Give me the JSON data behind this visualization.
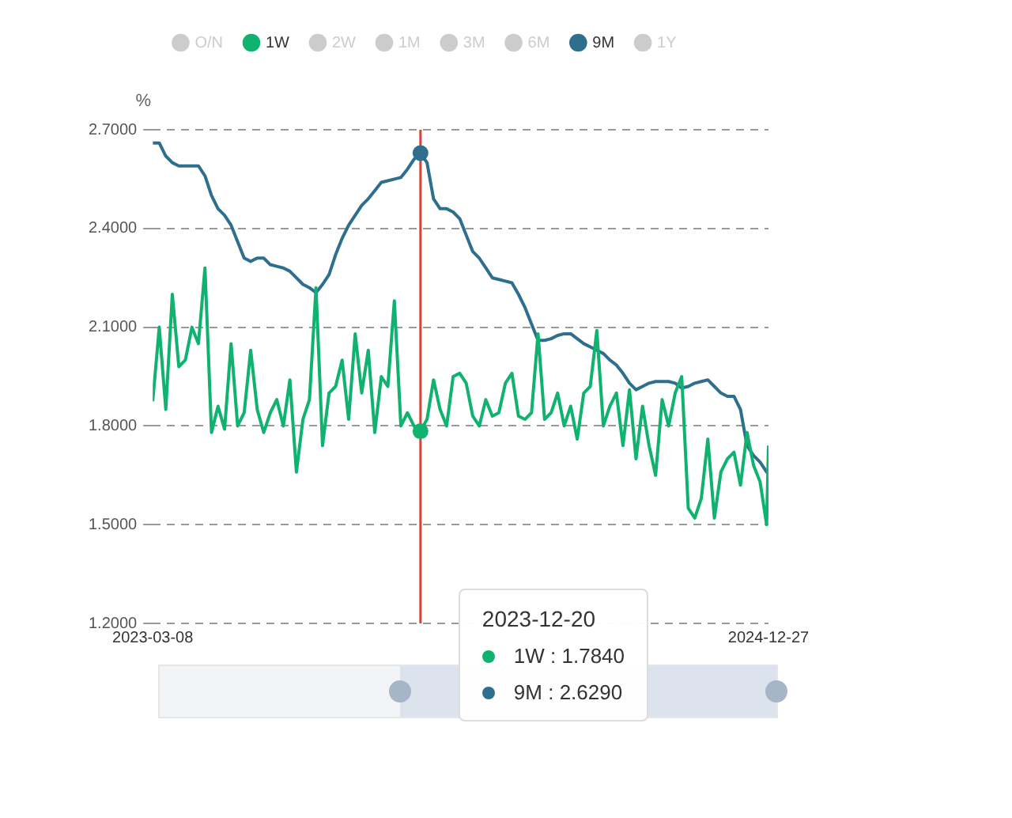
{
  "chart_data": {
    "type": "line",
    "ylabel": "%",
    "legend": "top",
    "grid": "y",
    "marker": "none",
    "x": [
      "2023-03-08",
      "2023-03-15",
      "2023-03-22",
      "2023-03-29",
      "2023-04-05",
      "2023-04-12",
      "2023-04-19",
      "2023-04-26",
      "2023-05-03",
      "2023-05-10",
      "2023-05-17",
      "2023-05-24",
      "2023-05-31",
      "2023-06-07",
      "2023-06-14",
      "2023-06-21",
      "2023-06-28",
      "2023-07-05",
      "2023-07-12",
      "2023-07-19",
      "2023-07-26",
      "2023-08-02",
      "2023-08-09",
      "2023-08-16",
      "2023-08-23",
      "2023-08-30",
      "2023-09-06",
      "2023-09-13",
      "2023-09-20",
      "2023-09-27",
      "2023-10-04",
      "2023-10-11",
      "2023-10-18",
      "2023-10-25",
      "2023-11-01",
      "2023-11-08",
      "2023-11-15",
      "2023-11-22",
      "2023-11-29",
      "2023-12-06",
      "2023-12-13",
      "2023-12-20",
      "2023-12-27",
      "2024-01-03",
      "2024-01-10",
      "2024-01-17",
      "2024-01-24",
      "2024-01-31",
      "2024-02-07",
      "2024-02-14",
      "2024-02-21",
      "2024-02-28",
      "2024-03-06",
      "2024-03-13",
      "2024-03-20",
      "2024-03-27",
      "2024-04-03",
      "2024-04-10",
      "2024-04-17",
      "2024-04-24",
      "2024-05-01",
      "2024-05-08",
      "2024-05-15",
      "2024-05-22",
      "2024-05-29",
      "2024-06-05",
      "2024-06-12",
      "2024-06-19",
      "2024-06-26",
      "2024-07-03",
      "2024-07-10",
      "2024-07-17",
      "2024-07-24",
      "2024-07-31",
      "2024-08-07",
      "2024-08-14",
      "2024-08-21",
      "2024-08-28",
      "2024-09-04",
      "2024-09-11",
      "2024-09-18",
      "2024-09-25",
      "2024-10-02",
      "2024-10-09",
      "2024-10-16",
      "2024-10-23",
      "2024-10-30",
      "2024-11-06",
      "2024-11-13",
      "2024-11-20",
      "2024-11-27",
      "2024-12-04",
      "2024-12-11",
      "2024-12-18",
      "2024-12-25",
      "2024-12-27"
    ],
    "xlim": [
      "2023-03-08",
      "2024-12-27"
    ],
    "xticks": [
      {
        "value": "2023-03-08",
        "label": "2023-03-08"
      },
      {
        "value": "2024-12-27",
        "label": "2024-12-27"
      }
    ],
    "ylim": [
      1.2,
      2.7
    ],
    "yticks": [
      {
        "value": 1.2,
        "label": "1.2000"
      },
      {
        "value": 1.5,
        "label": "1.5000"
      },
      {
        "value": 1.8,
        "label": "1.8000"
      },
      {
        "value": 2.1,
        "label": "2.1000"
      },
      {
        "value": 2.4,
        "label": "2.4000"
      },
      {
        "value": 2.7,
        "label": "2.7000"
      }
    ],
    "series": [
      {
        "name": "O/N",
        "color": "#cccccc",
        "values": [
          null,
          null,
          null,
          null,
          null,
          null,
          null,
          null,
          null,
          null,
          null,
          null,
          null,
          null,
          null,
          null,
          null,
          null,
          null,
          null,
          null,
          null,
          null,
          null,
          null,
          null,
          null,
          null,
          null,
          null,
          null,
          null,
          null,
          null,
          null,
          null,
          null,
          null,
          null,
          null,
          null,
          null,
          null,
          null,
          null,
          null,
          null,
          null,
          null,
          null,
          null,
          null,
          null,
          null,
          null,
          null,
          null,
          null,
          null,
          null,
          null,
          null,
          null,
          null,
          null,
          null,
          null,
          null,
          null,
          null,
          null,
          null,
          null,
          null,
          null,
          null,
          null,
          null,
          null,
          null,
          null,
          null,
          null,
          null,
          null,
          null,
          null,
          null,
          null,
          null,
          null,
          null,
          null,
          null,
          null,
          null
        ]
      },
      {
        "name": "1W",
        "color": "#10b26f",
        "values": [
          1.875,
          2.1,
          1.85,
          2.2,
          1.98,
          2.0,
          2.1,
          2.05,
          2.28,
          1.78,
          1.86,
          1.79,
          2.05,
          1.8,
          1.84,
          2.03,
          1.85,
          1.78,
          1.84,
          1.88,
          1.8,
          1.94,
          1.66,
          1.82,
          1.88,
          2.22,
          1.74,
          1.9,
          1.92,
          2.0,
          1.82,
          2.08,
          1.9,
          2.03,
          1.78,
          1.95,
          1.92,
          2.18,
          1.8,
          1.84,
          1.8,
          1.784,
          1.82,
          1.94,
          1.85,
          1.8,
          1.95,
          1.96,
          1.93,
          1.83,
          1.8,
          1.88,
          1.83,
          1.84,
          1.93,
          1.96,
          1.83,
          1.82,
          1.84,
          2.08,
          1.82,
          1.84,
          1.9,
          1.8,
          1.86,
          1.76,
          1.9,
          1.92,
          2.09,
          1.8,
          1.86,
          1.9,
          1.74,
          1.91,
          1.7,
          1.86,
          1.74,
          1.65,
          1.88,
          1.8,
          1.9,
          1.95,
          1.55,
          1.52,
          1.58,
          1.76,
          1.52,
          1.66,
          1.7,
          1.72,
          1.62,
          1.78,
          1.68,
          1.63,
          1.5,
          1.74
        ]
      },
      {
        "name": "2W",
        "color": "#cccccc",
        "values": [
          null,
          null,
          null,
          null,
          null,
          null,
          null,
          null,
          null,
          null,
          null,
          null,
          null,
          null,
          null,
          null,
          null,
          null,
          null,
          null,
          null,
          null,
          null,
          null,
          null,
          null,
          null,
          null,
          null,
          null,
          null,
          null,
          null,
          null,
          null,
          null,
          null,
          null,
          null,
          null,
          null,
          null,
          null,
          null,
          null,
          null,
          null,
          null,
          null,
          null,
          null,
          null,
          null,
          null,
          null,
          null,
          null,
          null,
          null,
          null,
          null,
          null,
          null,
          null,
          null,
          null,
          null,
          null,
          null,
          null,
          null,
          null,
          null,
          null,
          null,
          null,
          null,
          null,
          null,
          null,
          null,
          null,
          null,
          null,
          null,
          null,
          null,
          null,
          null,
          null,
          null,
          null,
          null,
          null,
          null,
          null
        ]
      },
      {
        "name": "1M",
        "color": "#cccccc",
        "values": [
          null,
          null,
          null,
          null,
          null,
          null,
          null,
          null,
          null,
          null,
          null,
          null,
          null,
          null,
          null,
          null,
          null,
          null,
          null,
          null,
          null,
          null,
          null,
          null,
          null,
          null,
          null,
          null,
          null,
          null,
          null,
          null,
          null,
          null,
          null,
          null,
          null,
          null,
          null,
          null,
          null,
          null,
          null,
          null,
          null,
          null,
          null,
          null,
          null,
          null,
          null,
          null,
          null,
          null,
          null,
          null,
          null,
          null,
          null,
          null,
          null,
          null,
          null,
          null,
          null,
          null,
          null,
          null,
          null,
          null,
          null,
          null,
          null,
          null,
          null,
          null,
          null,
          null,
          null,
          null,
          null,
          null,
          null,
          null,
          null,
          null,
          null,
          null,
          null,
          null,
          null,
          null,
          null,
          null,
          null,
          null
        ]
      },
      {
        "name": "3M",
        "color": "#cccccc",
        "values": [
          null,
          null,
          null,
          null,
          null,
          null,
          null,
          null,
          null,
          null,
          null,
          null,
          null,
          null,
          null,
          null,
          null,
          null,
          null,
          null,
          null,
          null,
          null,
          null,
          null,
          null,
          null,
          null,
          null,
          null,
          null,
          null,
          null,
          null,
          null,
          null,
          null,
          null,
          null,
          null,
          null,
          null,
          null,
          null,
          null,
          null,
          null,
          null,
          null,
          null,
          null,
          null,
          null,
          null,
          null,
          null,
          null,
          null,
          null,
          null,
          null,
          null,
          null,
          null,
          null,
          null,
          null,
          null,
          null,
          null,
          null,
          null,
          null,
          null,
          null,
          null,
          null,
          null,
          null,
          null,
          null,
          null,
          null,
          null,
          null,
          null,
          null,
          null,
          null,
          null,
          null,
          null,
          null,
          null,
          null,
          null
        ]
      },
      {
        "name": "6M",
        "color": "#cccccc",
        "values": [
          null,
          null,
          null,
          null,
          null,
          null,
          null,
          null,
          null,
          null,
          null,
          null,
          null,
          null,
          null,
          null,
          null,
          null,
          null,
          null,
          null,
          null,
          null,
          null,
          null,
          null,
          null,
          null,
          null,
          null,
          null,
          null,
          null,
          null,
          null,
          null,
          null,
          null,
          null,
          null,
          null,
          null,
          null,
          null,
          null,
          null,
          null,
          null,
          null,
          null,
          null,
          null,
          null,
          null,
          null,
          null,
          null,
          null,
          null,
          null,
          null,
          null,
          null,
          null,
          null,
          null,
          null,
          null,
          null,
          null,
          null,
          null,
          null,
          null,
          null,
          null,
          null,
          null,
          null,
          null,
          null,
          null,
          null,
          null,
          null,
          null,
          null,
          null,
          null,
          null,
          null,
          null,
          null,
          null,
          null,
          null
        ]
      },
      {
        "name": "9M",
        "color": "#2e6f8e",
        "values": [
          2.66,
          2.66,
          2.62,
          2.6,
          2.59,
          2.59,
          2.59,
          2.59,
          2.56,
          2.5,
          2.46,
          2.44,
          2.41,
          2.36,
          2.31,
          2.3,
          2.31,
          2.31,
          2.29,
          2.285,
          2.28,
          2.27,
          2.25,
          2.23,
          2.22,
          2.205,
          2.23,
          2.26,
          2.32,
          2.37,
          2.41,
          2.44,
          2.47,
          2.49,
          2.515,
          2.54,
          2.545,
          2.55,
          2.555,
          2.58,
          2.61,
          2.629,
          2.6,
          2.49,
          2.46,
          2.46,
          2.45,
          2.43,
          2.38,
          2.33,
          2.31,
          2.28,
          2.25,
          2.245,
          2.24,
          2.235,
          2.2,
          2.16,
          2.11,
          2.06,
          2.06,
          2.065,
          2.075,
          2.08,
          2.08,
          2.065,
          2.05,
          2.04,
          2.03,
          2.02,
          2.0,
          1.985,
          1.96,
          1.93,
          1.91,
          1.92,
          1.93,
          1.935,
          1.935,
          1.935,
          1.93,
          1.915,
          1.92,
          1.93,
          1.935,
          1.94,
          1.92,
          1.9,
          1.89,
          1.89,
          1.85,
          1.74,
          1.71,
          1.69,
          1.66,
          1.66
        ]
      },
      {
        "name": "1Y",
        "color": "#cccccc",
        "values": [
          null,
          null,
          null,
          null,
          null,
          null,
          null,
          null,
          null,
          null,
          null,
          null,
          null,
          null,
          null,
          null,
          null,
          null,
          null,
          null,
          null,
          null,
          null,
          null,
          null,
          null,
          null,
          null,
          null,
          null,
          null,
          null,
          null,
          null,
          null,
          null,
          null,
          null,
          null,
          null,
          null,
          null,
          null,
          null,
          null,
          null,
          null,
          null,
          null,
          null,
          null,
          null,
          null,
          null,
          null,
          null,
          null,
          null,
          null,
          null,
          null,
          null,
          null,
          null,
          null,
          null,
          null,
          null,
          null,
          null,
          null,
          null,
          null,
          null,
          null,
          null,
          null,
          null,
          null,
          null,
          null,
          null,
          null,
          null,
          null,
          null,
          null,
          null,
          null,
          null,
          null,
          null,
          null,
          null,
          null,
          null
        ]
      }
    ],
    "ref_lines": [
      {
        "axis": "x",
        "value": "2023-12-20",
        "color": "#d0463b"
      }
    ],
    "annotations": [
      "2023-12-20",
      "1W : 1.7840",
      "9M : 2.6290"
    ]
  }
}
